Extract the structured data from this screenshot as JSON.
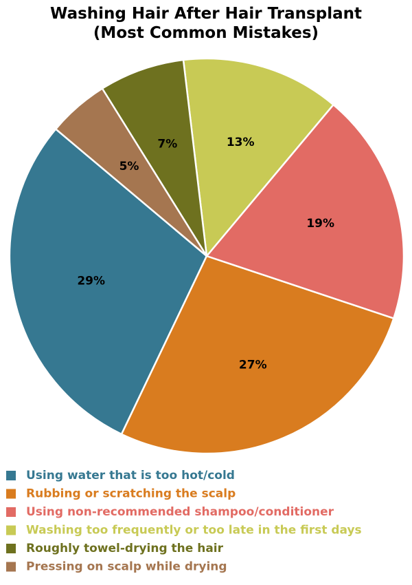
{
  "chart_data": {
    "type": "pie",
    "title": "Washing Hair After Hair Transplant\n(Most Common Mistakes)",
    "categories": [
      "Using water that is too hot/cold",
      "Rubbing or scratching the scalp",
      "Using non-recommended shampoo/conditioner",
      "Washing too frequently or too late in the first days",
      "Roughly towel-drying the hair",
      "Pressing on scalp while drying"
    ],
    "values": [
      29,
      27,
      19,
      13,
      7,
      5
    ],
    "value_labels": [
      "29%",
      "27%",
      "19%",
      "13%",
      "7%",
      "5%"
    ],
    "colors": [
      "#367891",
      "#d97c1f",
      "#e26b64",
      "#c8ca55",
      "#6e711f",
      "#a57650"
    ]
  }
}
